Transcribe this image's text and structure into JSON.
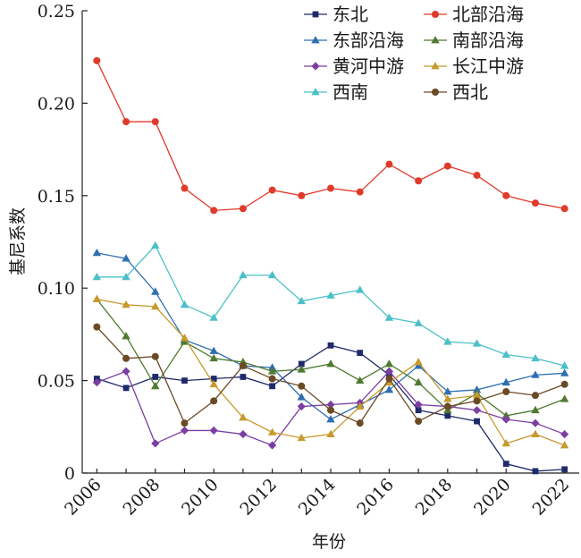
{
  "chart_data": {
    "type": "line",
    "xlabel": "年份",
    "ylabel": "基尼系数",
    "xlim": [
      2005.5,
      2022.5
    ],
    "ylim": [
      0,
      0.25
    ],
    "x": [
      2006,
      2007,
      2008,
      2009,
      2010,
      2011,
      2012,
      2013,
      2014,
      2015,
      2016,
      2017,
      2018,
      2019,
      2020,
      2021,
      2022
    ],
    "x_ticks": [
      2006,
      2008,
      2010,
      2012,
      2014,
      2016,
      2018,
      2020,
      2022
    ],
    "x_tick_labels": [
      "2006",
      "2008",
      "2010",
      "2012",
      "2014",
      "2016",
      "2018",
      "2020",
      "2022"
    ],
    "y_ticks": [
      0,
      0.05,
      0.1,
      0.15,
      0.2,
      0.25
    ],
    "y_tick_labels": [
      "0",
      "0.05",
      "0.10",
      "0.15",
      "0.20",
      "0.25"
    ],
    "grid": false,
    "legend_position": "top-right",
    "series": [
      {
        "name": "东北",
        "color": "#1f2a6b",
        "marker": "square",
        "values": [
          0.051,
          0.046,
          0.052,
          0.05,
          0.051,
          0.052,
          0.047,
          0.059,
          0.069,
          0.065,
          0.053,
          0.034,
          0.031,
          0.028,
          0.005,
          0.001,
          0.002
        ]
      },
      {
        "name": "北部沿海",
        "color": "#e03a2b",
        "marker": "circle",
        "values": [
          0.223,
          0.19,
          0.19,
          0.154,
          0.142,
          0.143,
          0.153,
          0.15,
          0.154,
          0.152,
          0.167,
          0.158,
          0.166,
          0.161,
          0.15,
          0.146,
          0.143
        ]
      },
      {
        "name": "东部沿海",
        "color": "#2e6fb0",
        "marker": "triangle",
        "values": [
          0.119,
          0.116,
          0.098,
          0.072,
          0.066,
          0.058,
          0.057,
          0.041,
          0.029,
          0.037,
          0.045,
          0.058,
          0.044,
          0.045,
          0.049,
          0.053,
          0.054
        ]
      },
      {
        "name": "南部沿海",
        "color": "#4f7a2f",
        "marker": "triangle",
        "values": [
          0.094,
          0.074,
          0.047,
          0.071,
          0.062,
          0.06,
          0.055,
          0.056,
          0.059,
          0.05,
          0.059,
          0.049,
          0.034,
          0.043,
          0.031,
          0.034,
          0.04
        ]
      },
      {
        "name": "黄河中游",
        "color": "#7b3fa3",
        "marker": "diamond",
        "values": [
          0.049,
          0.055,
          0.016,
          0.023,
          0.023,
          0.021,
          0.015,
          0.036,
          0.037,
          0.038,
          0.055,
          0.037,
          0.036,
          0.034,
          0.029,
          0.027,
          0.021
        ]
      },
      {
        "name": "长江中游",
        "color": "#c79a2e",
        "marker": "triangle",
        "values": [
          0.094,
          0.091,
          0.09,
          0.073,
          0.048,
          0.03,
          0.022,
          0.019,
          0.021,
          0.036,
          0.049,
          0.06,
          0.04,
          0.042,
          0.016,
          0.021,
          0.015
        ]
      },
      {
        "name": "西南",
        "color": "#4bc0c8",
        "marker": "triangle",
        "values": [
          0.106,
          0.106,
          0.123,
          0.091,
          0.084,
          0.107,
          0.107,
          0.093,
          0.096,
          0.099,
          0.084,
          0.081,
          0.071,
          0.07,
          0.064,
          0.062,
          0.058
        ]
      },
      {
        "name": "西北",
        "color": "#6b4a24",
        "marker": "circle",
        "values": [
          0.079,
          0.062,
          0.063,
          0.027,
          0.039,
          0.058,
          0.051,
          0.047,
          0.034,
          0.027,
          0.051,
          0.028,
          0.036,
          0.039,
          0.044,
          0.042,
          0.048
        ]
      }
    ]
  }
}
